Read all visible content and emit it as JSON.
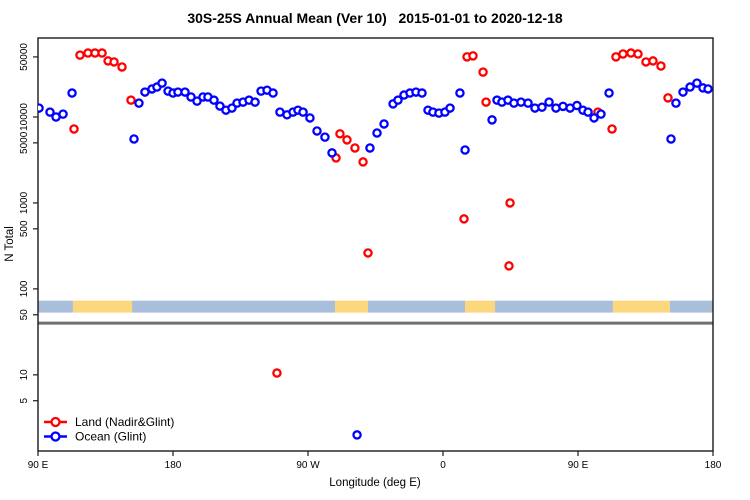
{
  "title": "30S-25S Annual Mean (Ver 10)   2015-01-01 to 2020-12-18",
  "chart_data": {
    "type": "scatter",
    "title": "30S-25S Annual Mean (Ver 10)   2015-01-01 to 2020-12-18",
    "xlabel": "Longitude (deg E)",
    "ylabel": "N Total",
    "grid": "off",
    "x_axis": {
      "range": [
        90,
        540
      ],
      "ticks": [
        90,
        180,
        270,
        360,
        450,
        540
      ],
      "tick_labels": [
        "90 E",
        "180",
        "90 W",
        "0",
        "90 E",
        "180"
      ]
    },
    "y_axis": {
      "scale": "log",
      "range": [
        1.3,
        83000
      ],
      "ticks": [
        5,
        10,
        50,
        100,
        500,
        1000,
        5000,
        10000,
        50000
      ],
      "tick_labels": [
        "5",
        "10",
        "50",
        "100",
        "500",
        "1000",
        "5000",
        "10000",
        "50000"
      ]
    },
    "series": [
      {
        "name": "Land (Nadir&Glint)",
        "color": "#FF0000",
        "symbol": "open-circle",
        "points": [
          [
            114,
            7250
          ],
          [
            118,
            52500
          ],
          [
            123.3,
            55500
          ],
          [
            128,
            55500
          ],
          [
            132.7,
            55500
          ],
          [
            136.7,
            44900
          ],
          [
            140.7,
            43700
          ],
          [
            146,
            38200
          ],
          [
            152,
            15700
          ],
          [
            249.3,
            10.5
          ],
          [
            288.7,
            3340
          ],
          [
            291.3,
            6370
          ],
          [
            296,
            5420
          ],
          [
            301.3,
            4360
          ],
          [
            306.7,
            3000
          ],
          [
            310,
            262
          ],
          [
            374,
            652
          ],
          [
            376,
            50100
          ],
          [
            380,
            51400
          ],
          [
            386.7,
            33300
          ],
          [
            388.7,
            14900
          ],
          [
            404,
            185
          ],
          [
            404.7,
            1000
          ],
          [
            463.3,
            11400
          ],
          [
            472.7,
            7250
          ],
          [
            475.3,
            50100
          ],
          [
            480,
            54100
          ],
          [
            485.3,
            55500
          ],
          [
            490,
            54100
          ],
          [
            495.3,
            43700
          ],
          [
            500,
            44900
          ],
          [
            505.3,
            39200
          ],
          [
            510,
            16700
          ]
        ]
      },
      {
        "name": "Ocean (Glint)",
        "color": "#0000FF",
        "symbol": "open-circle",
        "points": [
          [
            90.7,
            12700
          ],
          [
            98,
            11400
          ],
          [
            102,
            10000
          ],
          [
            106.7,
            10800
          ],
          [
            112.7,
            19000
          ],
          [
            154,
            5550
          ],
          [
            157.3,
            14500
          ],
          [
            161.3,
            19500
          ],
          [
            166,
            21200
          ],
          [
            169.3,
            22300
          ],
          [
            172.7,
            24800
          ],
          [
            176.7,
            20000
          ],
          [
            180,
            19000
          ],
          [
            183.3,
            19500
          ],
          [
            188,
            19500
          ],
          [
            192,
            17100
          ],
          [
            196,
            15300
          ],
          [
            200,
            17100
          ],
          [
            203.3,
            17100
          ],
          [
            207.3,
            15700
          ],
          [
            211.3,
            13400
          ],
          [
            215.3,
            12000
          ],
          [
            219.3,
            12700
          ],
          [
            222.7,
            14500
          ],
          [
            226.7,
            14900
          ],
          [
            230.7,
            15700
          ],
          [
            234.7,
            14900
          ],
          [
            238.7,
            20000
          ],
          [
            242.7,
            20500
          ],
          [
            246.7,
            19000
          ],
          [
            251.3,
            11400
          ],
          [
            256,
            10600
          ],
          [
            260,
            11400
          ],
          [
            263.3,
            12000
          ],
          [
            266.7,
            11400
          ],
          [
            271.3,
            9750
          ],
          [
            276,
            6870
          ],
          [
            281.3,
            5830
          ],
          [
            286,
            3820
          ],
          [
            302.7,
            2
          ],
          [
            311.3,
            4360
          ],
          [
            316,
            6520
          ],
          [
            320.7,
            8300
          ],
          [
            326.7,
            14200
          ],
          [
            330,
            15700
          ],
          [
            334,
            18000
          ],
          [
            338,
            19000
          ],
          [
            342,
            19500
          ],
          [
            346,
            19000
          ],
          [
            350,
            12000
          ],
          [
            353.3,
            11400
          ],
          [
            357.3,
            11100
          ],
          [
            361.3,
            11400
          ],
          [
            364.7,
            12700
          ],
          [
            371.3,
            19000
          ],
          [
            374.7,
            4130
          ],
          [
            392.7,
            9250
          ],
          [
            396,
            15700
          ],
          [
            399.3,
            14900
          ],
          [
            403.3,
            15700
          ],
          [
            407.3,
            14500
          ],
          [
            412,
            14900
          ],
          [
            416.7,
            14500
          ],
          [
            421.3,
            12700
          ],
          [
            426,
            13000
          ],
          [
            430.7,
            14900
          ],
          [
            435.3,
            12700
          ],
          [
            440,
            13300
          ],
          [
            444.7,
            12700
          ],
          [
            449.3,
            13600
          ],
          [
            453.3,
            12000
          ],
          [
            456.7,
            11400
          ],
          [
            460.7,
            9750
          ],
          [
            465.3,
            10800
          ],
          [
            470.7,
            19000
          ],
          [
            512,
            5550
          ],
          [
            515.3,
            14500
          ],
          [
            520,
            19500
          ],
          [
            524.7,
            22300
          ],
          [
            529.3,
            24800
          ],
          [
            533.3,
            21800
          ],
          [
            536.7,
            21200
          ]
        ]
      }
    ],
    "surface_band": {
      "value_range": [
        53,
        73
      ],
      "ocean_color": "#A9BEDB",
      "land_color": "#FBD77D",
      "segments": [
        {
          "from": 90,
          "to": 113.3,
          "type": "ocean"
        },
        {
          "from": 113.3,
          "to": 152.7,
          "type": "land"
        },
        {
          "from": 152.7,
          "to": 288,
          "type": "ocean"
        },
        {
          "from": 288,
          "to": 310,
          "type": "land"
        },
        {
          "from": 310,
          "to": 374.7,
          "type": "ocean"
        },
        {
          "from": 374.7,
          "to": 394.7,
          "type": "land"
        },
        {
          "from": 394.7,
          "to": 473.3,
          "type": "ocean"
        },
        {
          "from": 473.3,
          "to": 511.3,
          "type": "land"
        },
        {
          "from": 511.3,
          "to": 540,
          "type": "ocean"
        }
      ]
    },
    "reference_line": {
      "value": 40,
      "color": "#6F6F6F"
    },
    "legend_position": "bottom-left"
  }
}
